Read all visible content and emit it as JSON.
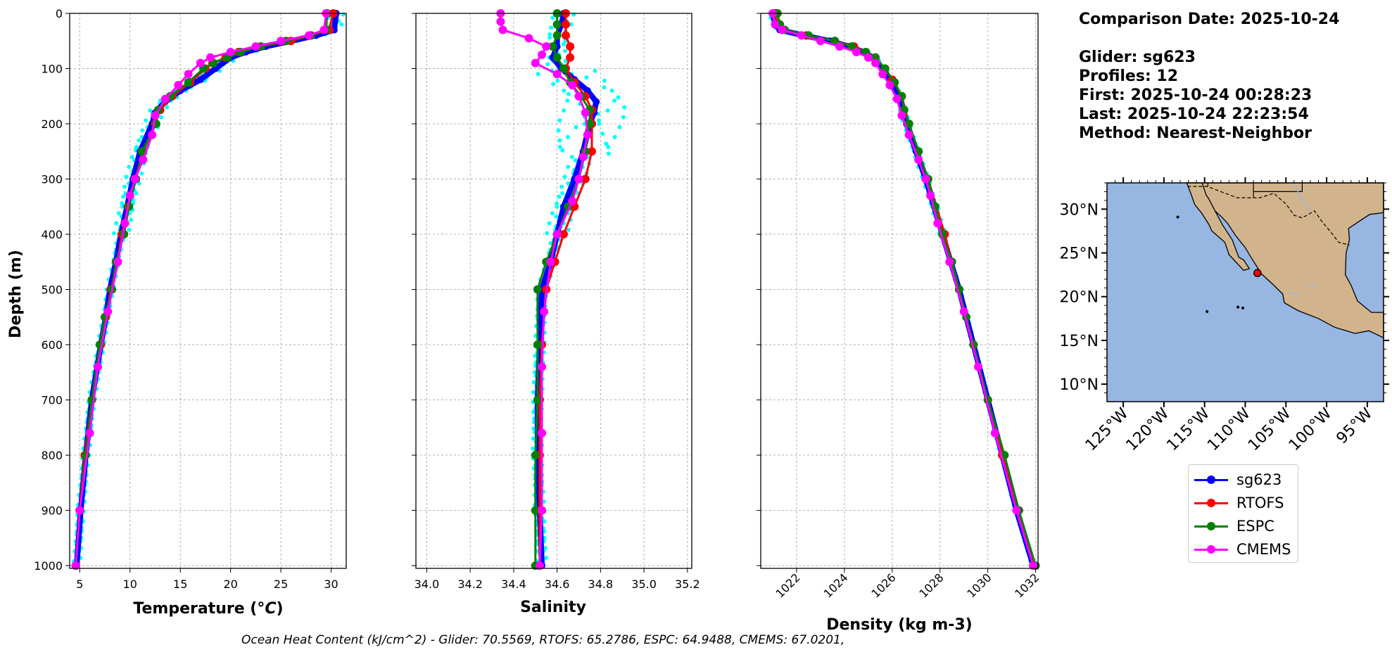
{
  "summary": {
    "comparison_date": "Comparison Date: 2025-10-24",
    "glider": "Glider: sg623",
    "profiles": "Profiles: 12",
    "first": "First: 2025-10-24 00:28:23",
    "last": "Last: 2025-10-24 22:23:54",
    "method": "Method: Nearest-Neighbor"
  },
  "footer_text": "Ocean Heat Content (kJ/cm^2) - Glider: 70.5569,  RTOFS: 65.2786,  ESPC: 64.9488,  CMEMS: 67.0201,",
  "legend": [
    {
      "label": "sg623",
      "color": "#0000ff"
    },
    {
      "label": "RTOFS",
      "color": "#ff0000"
    },
    {
      "label": "ESPC",
      "color": "#008000"
    },
    {
      "label": "CMEMS",
      "color": "#ff00ff"
    }
  ],
  "colors": {
    "glider_scatter": "#00ffff",
    "ocean": "#97b6e1",
    "land": "#d2b48c"
  },
  "chart_data": [
    {
      "type": "line",
      "id": "temperature",
      "xlabel": "Temperature (oC)",
      "ylabel": "Depth (m)",
      "xlim": [
        4,
        31.5
      ],
      "ylim": [
        1005,
        0
      ],
      "xticks": [
        5,
        10,
        15,
        20,
        25,
        30
      ],
      "yticks": [
        0,
        100,
        200,
        300,
        400,
        500,
        600,
        700,
        800,
        900,
        1000
      ],
      "grid": true,
      "series": [
        {
          "name": "sg623",
          "depth": [
            0,
            30,
            40,
            50,
            60,
            70,
            80,
            100,
            120,
            140,
            160,
            180,
            200,
            250,
            300,
            350,
            400,
            450,
            500,
            550,
            600,
            700,
            800,
            900,
            1000
          ],
          "values": [
            30.5,
            30.3,
            28.5,
            26,
            23.5,
            21.5,
            20,
            18.5,
            17,
            15,
            13.5,
            12.5,
            12.2,
            11,
            10.3,
            9.7,
            9.1,
            8.6,
            8.0,
            7.6,
            7.1,
            6.2,
            5.6,
            5.1,
            4.7
          ]
        },
        {
          "name": "RTOFS",
          "depth": [
            0,
            30,
            40,
            50,
            60,
            70,
            80,
            90,
            100,
            125,
            150,
            175,
            200,
            250,
            300,
            350,
            400,
            450,
            500,
            550,
            600,
            700,
            800,
            900,
            1000
          ],
          "values": [
            30.2,
            29.8,
            28,
            26,
            23,
            20.8,
            19.5,
            18.2,
            17.5,
            16,
            14.2,
            13,
            12.5,
            11.3,
            10.5,
            9.8,
            9.2,
            8.7,
            8.1,
            7.6,
            7.1,
            6.2,
            5.5,
            5.0,
            4.6
          ]
        },
        {
          "name": "ESPC",
          "depth": [
            0,
            30,
            40,
            50,
            60,
            70,
            80,
            90,
            100,
            125,
            150,
            175,
            200,
            250,
            300,
            350,
            400,
            450,
            500,
            550,
            600,
            700,
            800,
            900,
            1000
          ],
          "values": [
            29.6,
            29.5,
            28,
            25.5,
            23,
            21,
            19.7,
            18.3,
            17.3,
            15.8,
            14,
            12.8,
            12.6,
            11.2,
            10.6,
            9.9,
            9.4,
            8.6,
            8.2,
            7.5,
            7.0,
            6.2,
            5.6,
            5.0,
            4.6
          ]
        },
        {
          "name": "CMEMS",
          "depth": [
            0,
            30,
            40,
            50,
            60,
            70,
            80,
            90,
            110,
            130,
            155,
            185,
            220,
            265,
            300,
            330,
            380,
            450,
            540,
            640,
            760,
            900,
            1000
          ],
          "values": [
            29.5,
            29.3,
            27.8,
            25,
            22.5,
            20,
            18,
            17,
            15.8,
            14.8,
            13.5,
            12.5,
            12.2,
            11.3,
            10.5,
            10,
            9.5,
            8.8,
            7.8,
            6.8,
            6.0,
            5.0,
            4.6
          ]
        }
      ]
    },
    {
      "type": "line",
      "id": "salinity",
      "xlabel": "Salinity",
      "ylabel": "",
      "xlim": [
        33.95,
        35.22
      ],
      "ylim": [
        1005,
        0
      ],
      "xticks": [
        34.0,
        34.2,
        34.4,
        34.6,
        34.8,
        35.0,
        35.2
      ],
      "xticklabels": [
        "34.0",
        "34.2",
        "34.4",
        "34.6",
        "34.8",
        "35.0",
        "35.2"
      ],
      "yticks": [
        0,
        100,
        200,
        300,
        400,
        500,
        600,
        700,
        800,
        900,
        1000
      ],
      "grid": true,
      "series": [
        {
          "name": "sg623",
          "depth": [
            0,
            20,
            40,
            60,
            80,
            100,
            120,
            140,
            160,
            180,
            200,
            250,
            300,
            350,
            400,
            450,
            500,
            600,
            700,
            800,
            900,
            1000
          ],
          "values": [
            34.63,
            34.62,
            34.6,
            34.6,
            34.58,
            34.62,
            34.68,
            34.74,
            34.78,
            34.77,
            34.75,
            34.72,
            34.68,
            34.63,
            34.6,
            34.57,
            34.53,
            34.52,
            34.51,
            34.51,
            34.52,
            34.53
          ]
        },
        {
          "name": "RTOFS",
          "depth": [
            0,
            20,
            40,
            60,
            80,
            100,
            125,
            150,
            175,
            200,
            250,
            300,
            350,
            400,
            450,
            500,
            600,
            700,
            800,
            900,
            1000
          ],
          "values": [
            34.64,
            34.64,
            34.64,
            34.66,
            34.66,
            34.64,
            34.68,
            34.73,
            34.76,
            34.76,
            34.76,
            34.73,
            34.68,
            34.63,
            34.59,
            34.55,
            34.53,
            34.52,
            34.52,
            34.52,
            34.52
          ]
        },
        {
          "name": "ESPC",
          "depth": [
            0,
            20,
            40,
            60,
            80,
            100,
            125,
            150,
            175,
            200,
            250,
            300,
            350,
            400,
            450,
            500,
            600,
            700,
            800,
            900,
            1000
          ],
          "values": [
            34.6,
            34.6,
            34.6,
            34.58,
            34.6,
            34.63,
            34.66,
            34.71,
            34.75,
            34.75,
            34.73,
            34.7,
            34.65,
            34.6,
            34.55,
            34.51,
            34.51,
            34.51,
            34.5,
            34.5,
            34.5
          ]
        },
        {
          "name": "CMEMS",
          "depth": [
            0,
            15,
            30,
            45,
            60,
            75,
            90,
            110,
            130,
            150,
            180,
            220,
            260,
            300,
            340,
            400,
            450,
            540,
            640,
            760,
            900,
            1000
          ],
          "values": [
            34.34,
            34.34,
            34.35,
            34.47,
            34.55,
            34.53,
            34.5,
            34.6,
            34.67,
            34.7,
            34.73,
            34.74,
            34.72,
            34.7,
            34.67,
            34.6,
            34.57,
            34.54,
            34.53,
            34.53,
            34.53,
            34.52
          ]
        }
      ]
    },
    {
      "type": "line",
      "id": "density",
      "xlabel": "Density (kg m-3)",
      "ylabel": "",
      "xlim": [
        1020.5,
        1032.1
      ],
      "ylim": [
        1005,
        0
      ],
      "xticks": [
        1022,
        1024,
        1026,
        1028,
        1030,
        1032
      ],
      "yticks": [
        0,
        100,
        200,
        300,
        400,
        500,
        600,
        700,
        800,
        900,
        1000
      ],
      "grid": true,
      "series": [
        {
          "name": "sg623",
          "depth": [
            0,
            20,
            30,
            40,
            50,
            60,
            70,
            80,
            100,
            120,
            150,
            200,
            250,
            300,
            400,
            500,
            600,
            700,
            800,
            900,
            1000
          ],
          "values": [
            1021.0,
            1021.1,
            1021.3,
            1022.3,
            1023.4,
            1024.2,
            1024.8,
            1025.2,
            1025.6,
            1025.9,
            1026.3,
            1026.6,
            1027.0,
            1027.4,
            1028.1,
            1028.8,
            1029.4,
            1030.0,
            1030.6,
            1031.2,
            1031.9
          ]
        },
        {
          "name": "RTOFS",
          "depth": [
            0,
            20,
            30,
            40,
            50,
            60,
            70,
            80,
            100,
            120,
            150,
            200,
            250,
            300,
            400,
            500,
            600,
            700,
            800,
            900,
            1000
          ],
          "values": [
            1021.1,
            1021.2,
            1021.4,
            1022.4,
            1023.6,
            1024.4,
            1024.9,
            1025.3,
            1025.7,
            1026.0,
            1026.4,
            1026.7,
            1027.1,
            1027.5,
            1028.2,
            1028.8,
            1029.4,
            1030.0,
            1030.6,
            1031.3,
            1031.9
          ]
        },
        {
          "name": "ESPC",
          "depth": [
            0,
            20,
            30,
            40,
            50,
            60,
            70,
            80,
            100,
            125,
            150,
            175,
            200,
            250,
            300,
            350,
            400,
            450,
            500,
            550,
            600,
            700,
            800,
            900,
            1000
          ],
          "values": [
            1021.2,
            1021.3,
            1021.5,
            1022.5,
            1023.6,
            1024.3,
            1024.9,
            1025.3,
            1025.7,
            1026.1,
            1026.4,
            1026.5,
            1026.7,
            1027.1,
            1027.5,
            1027.8,
            1028.1,
            1028.5,
            1028.8,
            1029.1,
            1029.4,
            1030.0,
            1030.7,
            1031.3,
            1032.0
          ]
        },
        {
          "name": "CMEMS",
          "depth": [
            0,
            20,
            30,
            40,
            50,
            60,
            70,
            80,
            90,
            110,
            130,
            155,
            185,
            220,
            265,
            300,
            330,
            380,
            450,
            540,
            640,
            760,
            900,
            1000
          ],
          "values": [
            1021.0,
            1021.1,
            1021.4,
            1022.2,
            1023.0,
            1023.8,
            1024.5,
            1025.0,
            1025.3,
            1025.6,
            1025.9,
            1026.2,
            1026.4,
            1026.7,
            1027.1,
            1027.4,
            1027.6,
            1027.9,
            1028.4,
            1029.0,
            1029.6,
            1030.3,
            1031.2,
            1031.9
          ]
        }
      ]
    },
    {
      "type": "map",
      "id": "location-map",
      "lon_range": [
        -127,
        -93
      ],
      "lat_range": [
        8,
        33
      ],
      "xticks": [
        -125,
        -120,
        -115,
        -110,
        -105,
        -100,
        -95
      ],
      "xticklabels": [
        "125°W",
        "120°W",
        "115°W",
        "110°W",
        "105°W",
        "100°W",
        "95°W"
      ],
      "yticks": [
        10,
        15,
        20,
        25,
        30
      ],
      "yticklabels": [
        "10°N",
        "15°N",
        "20°N",
        "25°N",
        "30°N"
      ],
      "glider_position": {
        "lon": -108.5,
        "lat": 22.7
      }
    }
  ]
}
